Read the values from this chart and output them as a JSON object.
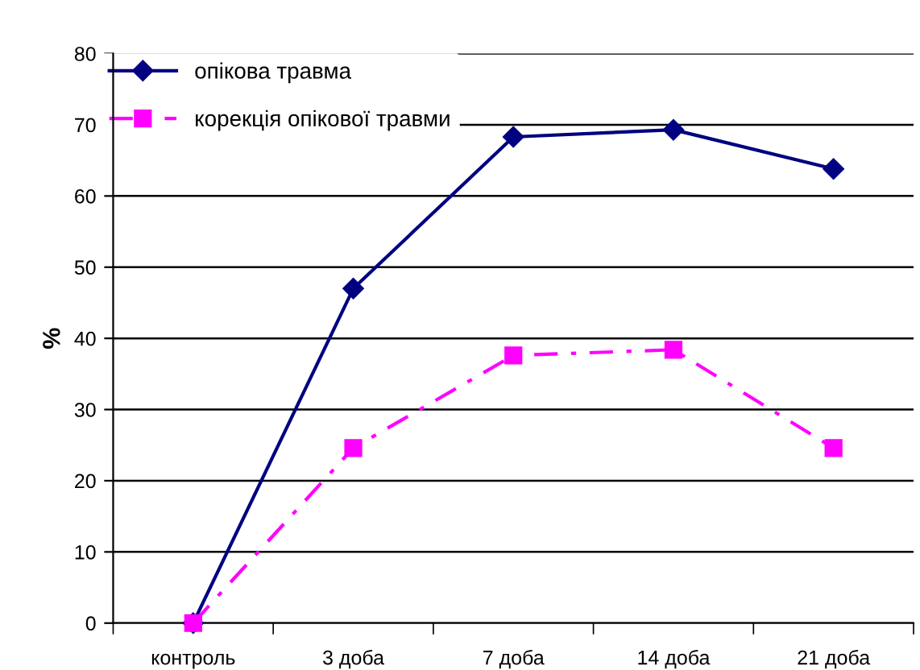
{
  "chart_data": {
    "type": "line",
    "ylabel": "%",
    "categories": [
      "контроль",
      "3 доба",
      "7 доба",
      "14 доба",
      "21 доба"
    ],
    "series": [
      {
        "name": "опікова травма",
        "color": "#000080",
        "values": [
          0,
          47,
          68.3,
          69.3,
          63.8
        ],
        "marker": "diamond",
        "line_style": "solid"
      },
      {
        "name": "корекція опікової травми",
        "color": "#ff00ff",
        "values": [
          0,
          24.6,
          37.6,
          38.4,
          24.6
        ],
        "marker": "square",
        "line_style": "dashed"
      }
    ],
    "ylim": [
      0,
      80
    ],
    "yticks": [
      0,
      10,
      20,
      30,
      40,
      50,
      60,
      70,
      80
    ],
    "grid": "y",
    "legend": "top left"
  }
}
